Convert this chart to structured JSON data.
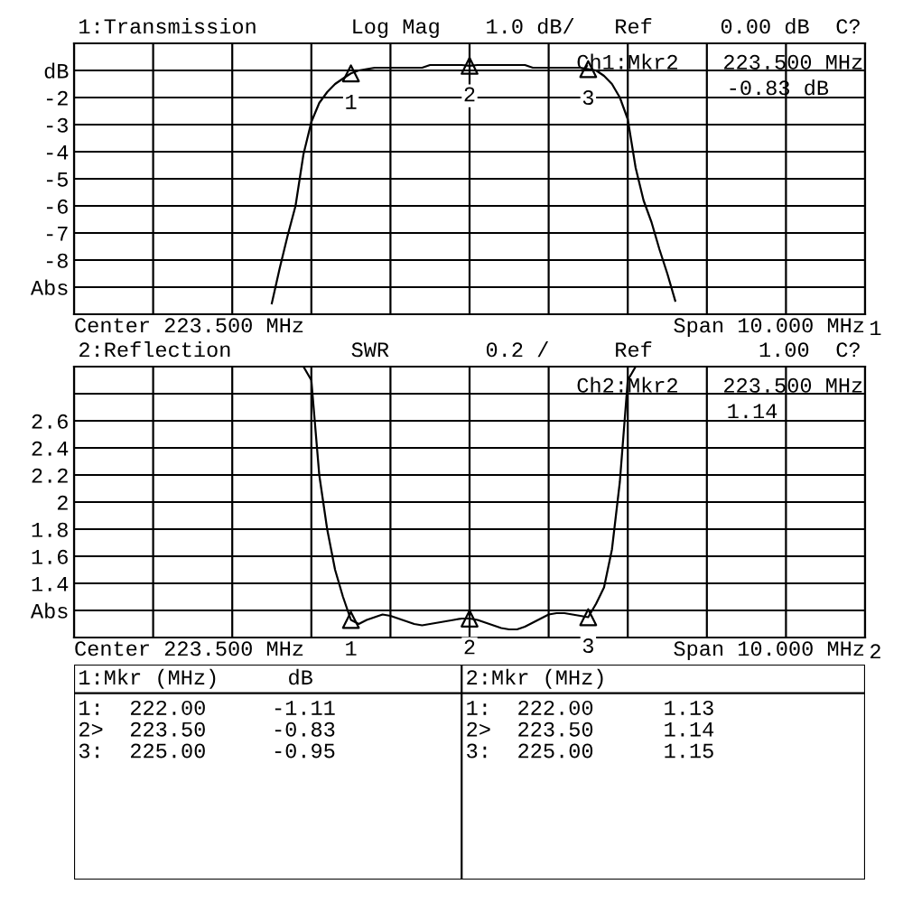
{
  "chart_data": [
    {
      "type": "line",
      "title": "1:Transmission",
      "annotations": [
        "Log Mag",
        "1.0 dB/",
        "Ref",
        "0.00 dB",
        "C?",
        "Ch1:Mkr2",
        "223.500 MHz",
        "-0.83 dB",
        "Center 223.500 MHz",
        "Span 10.000 MHz",
        "1",
        {
          "text": "1",
          "y": -1.11
        },
        {
          "text": "2",
          "y": -0.83
        },
        {
          "text": "3",
          "y": -0.95
        }
      ],
      "categories": [
        null,
        null,
        null,
        null,
        null,
        null,
        null,
        null,
        null,
        null,
        null,
        null,
        null,
        null,
        null,
        null,
        null,
        null,
        null,
        null,
        null,
        null,
        null,
        null,
        null,
        null,
        null,
        null,
        null,
        null,
        null,
        null,
        null,
        null,
        null,
        null,
        null,
        null,
        null,
        null,
        null,
        null,
        null,
        null,
        null,
        null,
        null,
        null,
        null,
        null,
        null,
        null,
        null,
        null,
        null,
        null,
        null,
        null,
        null,
        null,
        null,
        null,
        null,
        null,
        null,
        null,
        null,
        null,
        null,
        null,
        null,
        null,
        null,
        null,
        null,
        null,
        null,
        null,
        null,
        null,
        null,
        null,
        null,
        null,
        null,
        null,
        null,
        null,
        null,
        null,
        null,
        null,
        null,
        null,
        null,
        null,
        null,
        null,
        null,
        null,
        null
      ],
      "series": [
        {
          "type": "line",
          "color": "#000000",
          "values": [
            null,
            null,
            null,
            null,
            null,
            null,
            null,
            null,
            null,
            null,
            null,
            null,
            null,
            null,
            null,
            null,
            null,
            null,
            null,
            null,
            null,
            null,
            null,
            null,
            null,
            -9.6,
            -8.3,
            -7.1,
            -6.0,
            -4.1,
            -2.9,
            -2.2,
            -1.8,
            -1.5,
            -1.3,
            -1.11,
            -1.0,
            -0.95,
            -0.9,
            -0.9,
            -0.9,
            -0.9,
            -0.9,
            -0.9,
            -0.9,
            -0.8,
            -0.8,
            -0.8,
            -0.8,
            -0.8,
            -0.83,
            -0.8,
            -0.8,
            -0.8,
            -0.8,
            -0.8,
            -0.8,
            -0.8,
            -0.9,
            -0.9,
            -0.9,
            -0.9,
            -0.9,
            -0.9,
            -0.9,
            -0.95,
            -1.0,
            -1.2,
            -1.5,
            -2.0,
            -2.8,
            -4.6,
            -5.8,
            -6.6,
            -7.6,
            -8.5,
            -9.5,
            null,
            null,
            null,
            null,
            null,
            null,
            null,
            null,
            null,
            null,
            null,
            null,
            null,
            null,
            null,
            null,
            null,
            null,
            null,
            null,
            null,
            null,
            null,
            null
          ]
        }
      ],
      "ylim": [
        -10,
        0
      ],
      "yticks": [
        {
          "value": 0,
          "label": null
        },
        {
          "value": -1,
          "label": "dB"
        },
        -2,
        -3,
        -4,
        -5,
        -6,
        -7,
        -8,
        {
          "value": -9,
          "label": "Abs"
        },
        {
          "value": -10,
          "label": null
        }
      ],
      "tick_labels": "y",
      "grid": true
    },
    {
      "type": "line",
      "title": "2:Reflection",
      "annotations": [
        "SWR",
        "0.2 /",
        "Ref",
        "1.00",
        "C?",
        "Ch2:Mkr2",
        "223.500 MHz",
        "1.14",
        "Center 223.500 MHz",
        "Span 10.000 MHz",
        "2",
        {
          "text": "1",
          "y": 1.13
        },
        {
          "text": "2",
          "y": 1.14
        },
        {
          "text": "3",
          "y": 1.15
        }
      ],
      "categories": [
        null,
        null,
        null,
        null,
        null,
        null,
        null,
        null,
        null,
        null,
        null,
        null,
        null,
        null,
        null,
        null,
        null,
        null,
        null,
        null,
        null,
        null,
        null,
        null,
        null,
        null,
        null,
        null,
        null,
        null,
        null,
        null,
        null,
        null,
        null,
        null,
        null,
        null,
        null,
        null,
        null,
        null,
        null,
        null,
        null,
        null,
        null,
        null,
        null,
        null,
        null,
        null,
        null,
        null,
        null,
        null,
        null,
        null,
        null,
        null,
        null,
        null,
        null,
        null,
        null,
        null,
        null,
        null,
        null,
        null,
        null,
        null,
        null,
        null,
        null,
        null,
        null,
        null,
        null,
        null,
        null,
        null,
        null,
        null,
        null,
        null,
        null,
        null,
        null,
        null,
        null,
        null,
        null,
        null,
        null,
        null,
        null,
        null,
        null,
        null,
        null
      ],
      "series": [
        {
          "type": "line",
          "color": "#000000",
          "values": [
            3.0,
            3.0,
            3.0,
            3.0,
            3.0,
            3.0,
            3.0,
            3.0,
            3.0,
            3.0,
            3.0,
            3.0,
            3.0,
            3.0,
            3.0,
            3.0,
            3.0,
            3.0,
            3.0,
            3.0,
            3.0,
            3.0,
            3.0,
            3.0,
            3.0,
            3.0,
            3.0,
            3.0,
            3.0,
            3.0,
            2.9,
            2.2,
            1.8,
            1.5,
            1.3,
            1.13,
            1.1,
            1.13,
            1.15,
            1.17,
            1.16,
            1.14,
            1.12,
            1.1,
            1.09,
            1.1,
            1.11,
            1.12,
            1.13,
            1.14,
            1.14,
            1.13,
            1.11,
            1.09,
            1.07,
            1.06,
            1.06,
            1.08,
            1.11,
            1.14,
            1.17,
            1.18,
            1.18,
            1.17,
            1.16,
            1.15,
            1.25,
            1.37,
            1.65,
            2.15,
            2.9,
            3.0,
            3.0,
            3.0,
            3.0,
            3.0,
            3.0,
            3.0,
            3.0,
            3.0,
            3.0,
            3.0,
            3.0,
            3.0,
            3.0,
            3.0,
            3.0,
            3.0,
            3.0,
            3.0,
            3.0,
            3.0,
            3.0,
            3.0,
            3.0,
            3.0,
            3.0,
            3.0,
            3.0,
            3.0,
            3.0
          ]
        }
      ],
      "ylim": [
        1.0,
        3.0
      ],
      "yticks": [
        {
          "value": 3.0,
          "label": null
        },
        {
          "value": 2.8,
          "label": null
        },
        2.6,
        2.4,
        2.2,
        2,
        1.8,
        1.6,
        1.4,
        {
          "value": 1.2,
          "label": "Abs"
        },
        {
          "value": 1.0,
          "label": null
        }
      ],
      "tick_labels": "y",
      "grid": true
    },
    {
      "type": "other",
      "annotations": [
        "1:Mkr (MHz)",
        "dB",
        "2:Mkr (MHz)",
        "1:",
        "222.00",
        "-1.11",
        "1:",
        "222.00",
        "1.13",
        "2>",
        "223.50",
        "-0.83",
        "2>",
        "223.50",
        "1.14",
        "3:",
        "225.00",
        "-0.95",
        "3:",
        "225.00",
        "1.15"
      ]
    }
  ]
}
